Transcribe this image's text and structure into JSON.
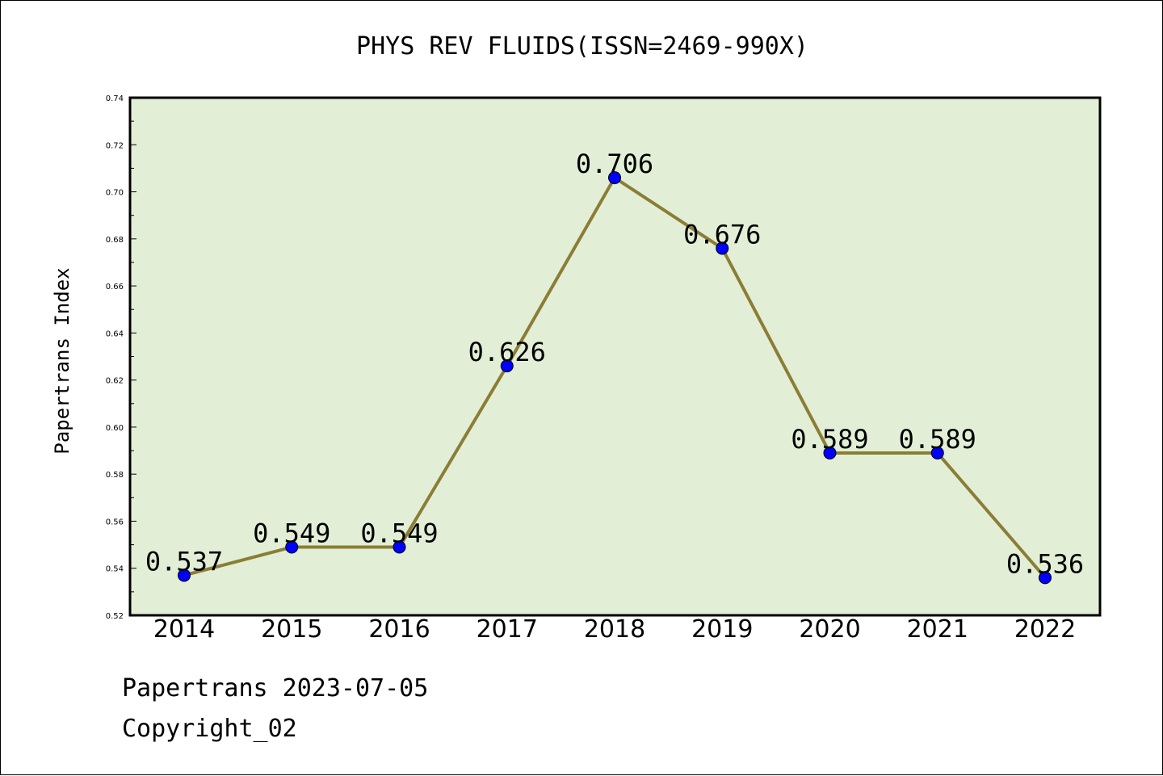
{
  "chart_data": {
    "type": "line",
    "title": "PHYS REV FLUIDS(ISSN=2469-990X)",
    "xlabel": "",
    "ylabel": "Papertrans Index",
    "categories": [
      "2014",
      "2015",
      "2016",
      "2017",
      "2018",
      "2019",
      "2020",
      "2021",
      "2022"
    ],
    "values": [
      0.537,
      0.549,
      0.549,
      0.626,
      0.706,
      0.676,
      0.589,
      0.589,
      0.536
    ],
    "data_labels": [
      "0.537",
      "0.549",
      "0.549",
      "0.626",
      "0.706",
      "0.676",
      "0.589",
      "0.589",
      "0.536"
    ],
    "ylim": [
      0.52,
      0.74
    ],
    "yticks": [
      "0.52",
      "0.54",
      "0.56",
      "0.58",
      "0.60",
      "0.62",
      "0.64",
      "0.66",
      "0.68",
      "0.70",
      "0.72",
      "0.74"
    ],
    "grid": false,
    "colors": {
      "plot_background": "#e2efd6",
      "line": "#8b7d36",
      "marker": "#0000ff"
    }
  },
  "footer": {
    "line1": "Papertrans 2023-07-05",
    "line2": "Copyright_02"
  }
}
